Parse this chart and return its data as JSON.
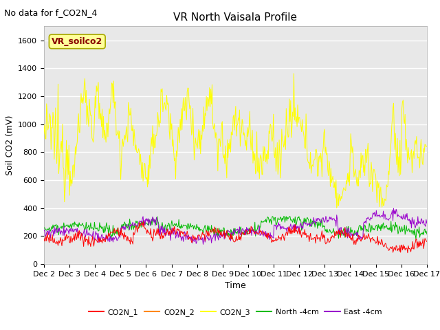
{
  "title": "VR North Vaisala Profile",
  "subtitle": "No data for f_CO2N_4",
  "ylabel": "Soil CO2 (mV)",
  "xlabel": "Time",
  "ylim": [
    0,
    1700
  ],
  "yticks": [
    0,
    200,
    400,
    600,
    800,
    1000,
    1200,
    1400,
    1600
  ],
  "x_labels": [
    "Dec 2",
    "Dec 3",
    "Dec 4",
    "Dec 5",
    "Dec 6",
    "Dec 7",
    "Dec 8",
    "Dec 9",
    "Dec 10",
    "Dec 11",
    "Dec 12",
    "Dec 13",
    "Dec 14",
    "Dec 15",
    "Dec 16",
    "Dec 17"
  ],
  "n_points": 600,
  "fig_bg_color": "#ffffff",
  "plot_bg_color": "#e8e8e8",
  "grid_color": "#ffffff",
  "legend_entries": [
    {
      "label": "CO2N_1",
      "color": "#ff0000"
    },
    {
      "label": "CO2N_2",
      "color": "#ff8800"
    },
    {
      "label": "CO2N_3",
      "color": "#ffff00"
    },
    {
      "label": "North -4cm",
      "color": "#00bb00"
    },
    {
      "label": "East -4cm",
      "color": "#9900cc"
    }
  ],
  "vr_soilco2_box_facecolor": "#ffff99",
  "vr_soilco2_box_edgecolor": "#aaaa00",
  "vr_soilco2_text_color": "#880000",
  "subtitle_color": "#000000",
  "title_fontsize": 11,
  "subtitle_fontsize": 9,
  "tick_fontsize": 8,
  "ylabel_fontsize": 9,
  "xlabel_fontsize": 9
}
